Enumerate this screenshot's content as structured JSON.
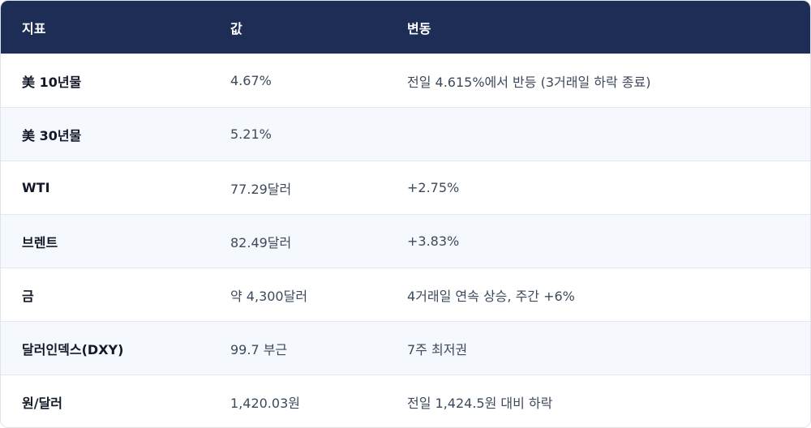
{
  "table": {
    "header": [
      "지표",
      "값",
      "변동"
    ],
    "rows": [
      [
        "美 10년물",
        "4.67%",
        "전일 4.615%에서 반등 (3거래일 하락 종료)"
      ],
      [
        "美 30년물",
        "5.21%",
        null
      ],
      [
        "WTI",
        "77.29달러",
        "+2.75%"
      ],
      [
        "브렌트",
        "82.49달러",
        "+3.83%"
      ],
      [
        "금",
        "약 4,300달러",
        "4거래일 연속 상승, 주간 +6%"
      ],
      [
        "달러인덱스(DXY)",
        "99.7 부근",
        "7주 최저권"
      ],
      [
        "원/달러",
        "1,420.03원",
        "전일 1,424.5원 대비 하락"
      ]
    ]
  }
}
